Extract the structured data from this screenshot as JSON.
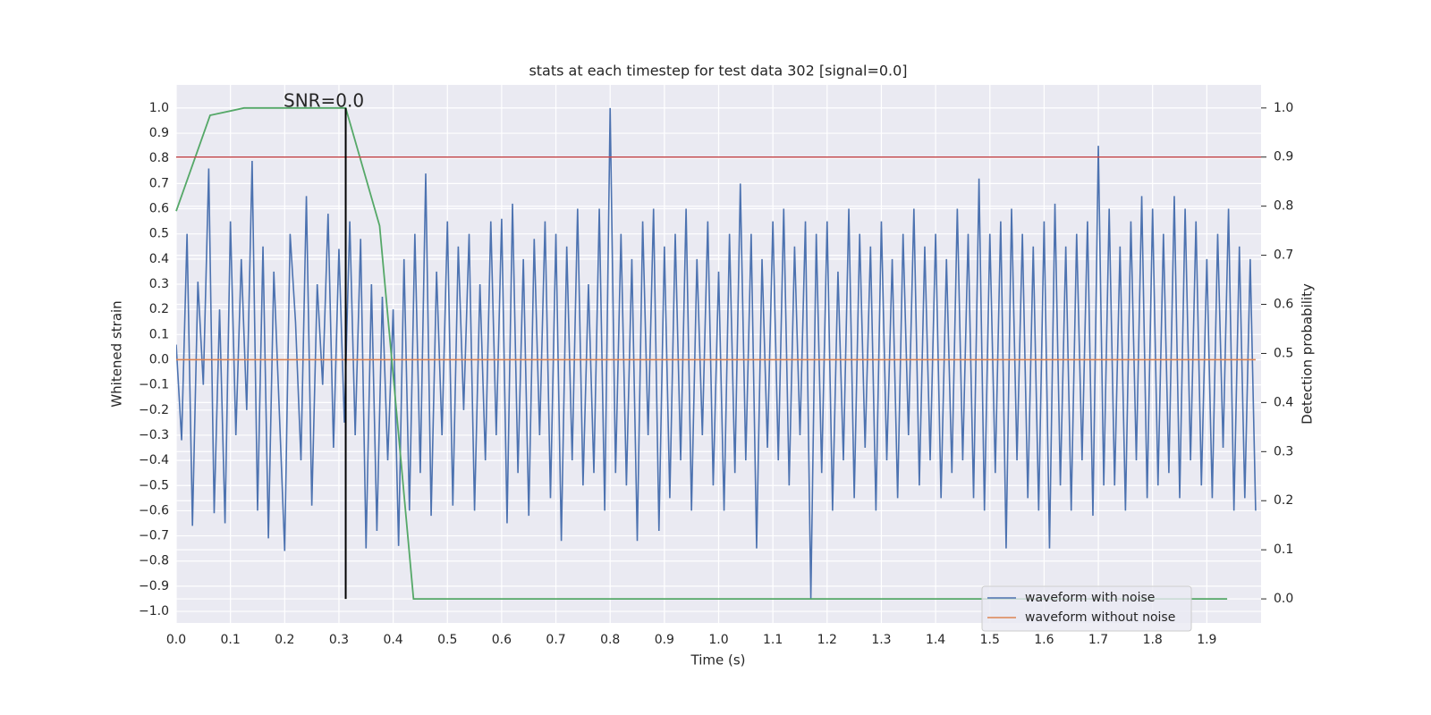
{
  "chart_data": {
    "type": "line",
    "title": "stats at each timestep for test data 302 [signal=0.0]",
    "xlabel": "Time (s)",
    "ylabel": "Whitened strain",
    "y2label": "Detection probability",
    "annotation": "SNR=0.0",
    "grid": true,
    "legend": "lower right",
    "xlim": [
      0,
      2.0
    ],
    "ylim": [
      -1.046,
      1.092
    ],
    "y2lim": [
      -0.049,
      1.047
    ],
    "xticks": [
      {
        "value": 0,
        "label": "0.0"
      },
      0.1,
      0.2,
      0.3,
      0.4,
      0.5,
      0.6,
      0.7,
      0.8,
      0.9,
      {
        "value": 1,
        "label": "1.0"
      },
      1.1,
      1.2,
      1.3,
      1.4,
      1.5,
      1.6,
      1.7,
      1.8,
      1.9
    ],
    "yticks": [
      {
        "value": -1,
        "label": "−1.0"
      },
      {
        "value": -0.9,
        "label": "−0.9"
      },
      {
        "value": -0.8,
        "label": "−0.8"
      },
      {
        "value": -0.7,
        "label": "−0.7"
      },
      {
        "value": -0.6,
        "label": "−0.6"
      },
      {
        "value": -0.5,
        "label": "−0.5"
      },
      {
        "value": -0.4,
        "label": "−0.4"
      },
      {
        "value": -0.3,
        "label": "−0.3"
      },
      {
        "value": -0.2,
        "label": "−0.2"
      },
      {
        "value": -0.1,
        "label": "−0.1"
      },
      {
        "value": 0,
        "label": "0.0"
      },
      0.1,
      0.2,
      0.3,
      0.4,
      0.5,
      0.6,
      0.7,
      0.8,
      0.9,
      {
        "value": 1,
        "label": "1.0"
      }
    ],
    "y2ticks": [
      {
        "value": 0,
        "label": "0.0"
      },
      0.1,
      0.2,
      0.3,
      0.4,
      0.5,
      0.6,
      0.7,
      0.8,
      0.9,
      {
        "value": 1,
        "label": "1.0"
      }
    ],
    "x": [
      0,
      0.01,
      0.02,
      0.03,
      0.04,
      0.05,
      0.06,
      0.07,
      0.08,
      0.09,
      0.1,
      0.11,
      0.12,
      0.13,
      0.14,
      0.15,
      0.16,
      0.17,
      0.18,
      0.19,
      0.2,
      0.21,
      0.22,
      0.23,
      0.24,
      0.25,
      0.26,
      0.27,
      0.28,
      0.29,
      0.3,
      0.31,
      0.32,
      0.33,
      0.34,
      0.35,
      0.36,
      0.37,
      0.38,
      0.39,
      0.4,
      0.41,
      0.42,
      0.43,
      0.44,
      0.45,
      0.46,
      0.47,
      0.48,
      0.49,
      0.5,
      0.51,
      0.52,
      0.53,
      0.54,
      0.55,
      0.56,
      0.57,
      0.58,
      0.59,
      0.6,
      0.61,
      0.62,
      0.63,
      0.64,
      0.65,
      0.66,
      0.67,
      0.68,
      0.69,
      0.7,
      0.71,
      0.72,
      0.73,
      0.74,
      0.75,
      0.76,
      0.77,
      0.78,
      0.79,
      0.8,
      0.81,
      0.82,
      0.83,
      0.84,
      0.85,
      0.86,
      0.87,
      0.88,
      0.89,
      0.9,
      0.91,
      0.92,
      0.93,
      0.94,
      0.95,
      0.96,
      0.97,
      0.98,
      0.99,
      1,
      1.01,
      1.02,
      1.03,
      1.04,
      1.05,
      1.06,
      1.07,
      1.08,
      1.09,
      1.1,
      1.11,
      1.12,
      1.13,
      1.14,
      1.15,
      1.16,
      1.17,
      1.18,
      1.19,
      1.2,
      1.21,
      1.22,
      1.23,
      1.24,
      1.25,
      1.26,
      1.27,
      1.28,
      1.29,
      1.3,
      1.31,
      1.32,
      1.33,
      1.34,
      1.35,
      1.36,
      1.37,
      1.38,
      1.39,
      1.4,
      1.41,
      1.42,
      1.43,
      1.44,
      1.45,
      1.46,
      1.47,
      1.48,
      1.49,
      1.5,
      1.51,
      1.52,
      1.53,
      1.54,
      1.55,
      1.56,
      1.57,
      1.58,
      1.59,
      1.6,
      1.61,
      1.62,
      1.63,
      1.64,
      1.65,
      1.66,
      1.67,
      1.68,
      1.69,
      1.7,
      1.71,
      1.72,
      1.73,
      1.74,
      1.75,
      1.76,
      1.77,
      1.78,
      1.79,
      1.8,
      1.81,
      1.82,
      1.83,
      1.84,
      1.85,
      1.86,
      1.87,
      1.88,
      1.89,
      1.9,
      1.91,
      1.92,
      1.93,
      1.94,
      1.95,
      1.96,
      1.97,
      1.98,
      1.99
    ],
    "series": [
      {
        "name": "waveform with noise",
        "color": "#4c72b0",
        "values": [
          0.06,
          -0.32,
          0.5,
          -0.66,
          0.31,
          -0.1,
          0.76,
          -0.61,
          0.2,
          -0.65,
          0.55,
          -0.3,
          0.4,
          -0.2,
          0.79,
          -0.6,
          0.45,
          -0.71,
          0.35,
          -0.2,
          -0.76,
          0.5,
          0.15,
          -0.4,
          0.65,
          -0.58,
          0.3,
          -0.1,
          0.58,
          -0.35,
          0.44,
          -0.25,
          0.55,
          -0.3,
          0.48,
          -0.75,
          0.3,
          -0.68,
          0.25,
          -0.4,
          0.2,
          -0.74,
          0.4,
          -0.6,
          0.5,
          -0.45,
          0.74,
          -0.62,
          0.35,
          -0.3,
          0.55,
          -0.58,
          0.45,
          -0.2,
          0.5,
          -0.6,
          0.3,
          -0.4,
          0.55,
          -0.3,
          0.56,
          -0.65,
          0.62,
          -0.45,
          0.4,
          -0.62,
          0.48,
          -0.3,
          0.55,
          -0.55,
          0.5,
          -0.72,
          0.45,
          -0.4,
          0.6,
          -0.5,
          0.3,
          -0.45,
          0.6,
          -0.6,
          1.0,
          -0.45,
          0.5,
          -0.5,
          0.4,
          -0.72,
          0.55,
          -0.3,
          0.6,
          -0.68,
          0.45,
          -0.55,
          0.5,
          -0.4,
          0.6,
          -0.6,
          0.4,
          -0.3,
          0.55,
          -0.5,
          0.35,
          -0.6,
          0.5,
          -0.45,
          0.7,
          -0.4,
          0.5,
          -0.75,
          0.4,
          -0.35,
          0.55,
          -0.4,
          0.6,
          -0.5,
          0.45,
          -0.3,
          0.55,
          -0.95,
          0.5,
          -0.45,
          0.55,
          -0.6,
          0.35,
          -0.4,
          0.6,
          -0.55,
          0.5,
          -0.35,
          0.45,
          -0.6,
          0.55,
          -0.4,
          0.4,
          -0.55,
          0.5,
          -0.3,
          0.6,
          -0.5,
          0.45,
          -0.4,
          0.5,
          -0.55,
          0.4,
          -0.45,
          0.6,
          -0.4,
          0.5,
          -0.55,
          0.72,
          -0.6,
          0.5,
          -0.45,
          0.55,
          -0.75,
          0.6,
          -0.4,
          0.5,
          -0.55,
          0.45,
          -0.6,
          0.55,
          -0.75,
          0.62,
          -0.5,
          0.45,
          -0.6,
          0.5,
          -0.4,
          0.55,
          -0.62,
          0.85,
          -0.5,
          0.6,
          -0.5,
          0.45,
          -0.6,
          0.55,
          -0.4,
          0.65,
          -0.55,
          0.6,
          -0.5,
          0.5,
          -0.45,
          0.65,
          -0.55,
          0.6,
          -0.4,
          0.55,
          -0.5,
          0.4,
          -0.55,
          0.5,
          -0.35,
          0.6,
          -0.6,
          0.45,
          -0.55,
          0.4,
          -0.6
        ]
      },
      {
        "name": "waveform without noise",
        "color": "#dd8452",
        "values": [
          0,
          0,
          0,
          0,
          0,
          0,
          0,
          0,
          0,
          0,
          0,
          0,
          0,
          0,
          0,
          0,
          0,
          0,
          0,
          0,
          0,
          0,
          0,
          0,
          0,
          0,
          0,
          0,
          0,
          0,
          0,
          0,
          0,
          0,
          0,
          0,
          0,
          0,
          0,
          0,
          0,
          0,
          0,
          0,
          0,
          0,
          0,
          0,
          0,
          0,
          0,
          0,
          0,
          0,
          0,
          0,
          0,
          0,
          0,
          0,
          0,
          0,
          0,
          0,
          0,
          0,
          0,
          0,
          0,
          0,
          0,
          0,
          0,
          0,
          0,
          0,
          0,
          0,
          0,
          0,
          0,
          0,
          0,
          0,
          0,
          0,
          0,
          0,
          0,
          0,
          0,
          0,
          0,
          0,
          0,
          0,
          0,
          0,
          0,
          0,
          0,
          0,
          0,
          0,
          0,
          0,
          0,
          0,
          0,
          0,
          0,
          0,
          0,
          0,
          0,
          0,
          0,
          0,
          0,
          0,
          0,
          0,
          0,
          0,
          0,
          0,
          0,
          0,
          0,
          0,
          0,
          0,
          0,
          0,
          0,
          0,
          0,
          0,
          0,
          0,
          0,
          0,
          0,
          0,
          0,
          0,
          0,
          0,
          0,
          0,
          0,
          0,
          0,
          0,
          0,
          0,
          0,
          0,
          0,
          0,
          0,
          0,
          0,
          0,
          0,
          0,
          0,
          0,
          0,
          0,
          0,
          0,
          0,
          0,
          0,
          0,
          0,
          0,
          0,
          0,
          0,
          0,
          0,
          0,
          0,
          0,
          0,
          0,
          0,
          0,
          0,
          0,
          0,
          0,
          0,
          0,
          0,
          0,
          0,
          0
        ]
      }
    ],
    "probability": {
      "axis": "y2",
      "color": "#55a868",
      "x": [
        0,
        0.0625,
        0.125,
        0.1875,
        0.25,
        0.3125,
        0.375,
        0.4375,
        0.5,
        0.5625,
        0.625,
        0.6875,
        0.75,
        0.8125,
        0.875,
        0.9375,
        1,
        1.0625,
        1.125,
        1.1875,
        1.25,
        1.3125,
        1.375,
        1.4375,
        1.5,
        1.5625,
        1.625,
        1.6875,
        1.75,
        1.8125,
        1.875,
        1.9375
      ],
      "values": [
        0.79,
        0.985,
        1.0,
        1.0,
        1.0,
        1.0,
        0.76,
        0,
        0,
        0,
        0,
        0,
        0,
        0,
        0,
        0,
        0,
        0,
        0,
        0,
        0,
        0,
        0,
        0,
        0,
        0,
        0,
        0,
        0,
        0,
        0,
        0
      ]
    },
    "threshold": {
      "axis": "y2",
      "value": 0.9,
      "color": "#c44e52"
    },
    "marker": {
      "x": 0.3125,
      "color": "#000000"
    }
  }
}
